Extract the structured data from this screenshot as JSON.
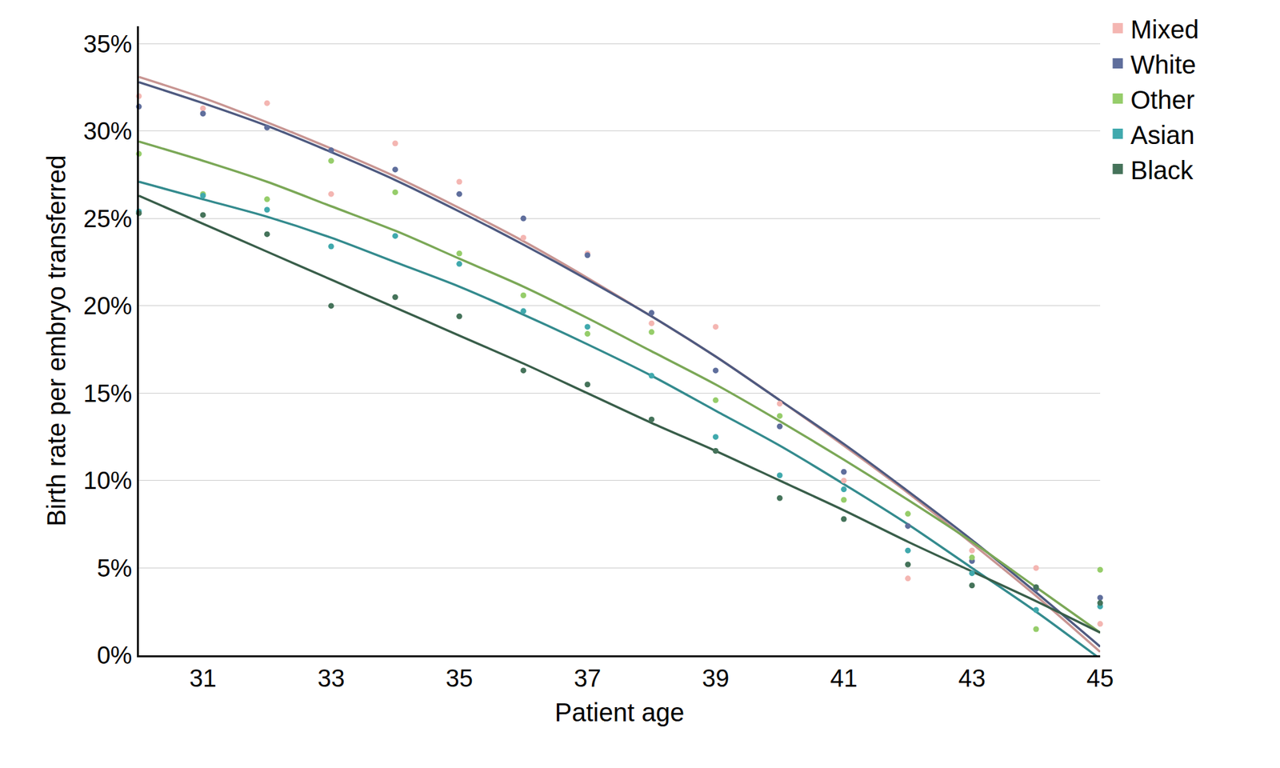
{
  "chart_data": {
    "type": "scatter",
    "x_label": "Patient age",
    "y_label": "Birth rate per embryo transferred",
    "x": [
      30,
      31,
      32,
      33,
      34,
      35,
      36,
      37,
      38,
      39,
      40,
      41,
      42,
      43,
      44,
      45
    ],
    "xlim": [
      30,
      45
    ],
    "xticks": [
      31,
      33,
      35,
      37,
      39,
      41,
      43,
      45
    ],
    "ylim": [
      0,
      36
    ],
    "yticks": [
      {
        "value": 0,
        "label": "0%"
      },
      {
        "value": 5,
        "label": "5%"
      },
      {
        "value": 10,
        "label": "10%"
      },
      {
        "value": 15,
        "label": "15%"
      },
      {
        "value": 20,
        "label": "20%"
      },
      {
        "value": 25,
        "label": "25%"
      },
      {
        "value": 30,
        "label": "30%"
      },
      {
        "value": 35,
        "label": "35%"
      }
    ],
    "grid": true,
    "legend": "right",
    "marker": "circle",
    "series": [
      {
        "name": "Mixed",
        "color": "#f4b6b2",
        "values": [
          32.0,
          31.3,
          31.6,
          26.4,
          29.3,
          27.1,
          23.9,
          23.0,
          19.0,
          18.8,
          14.4,
          10.0,
          4.4,
          6.0,
          5.0,
          1.8
        ],
        "trend": [
          33.1,
          31.9,
          30.5,
          29.0,
          27.4,
          25.6,
          23.7,
          21.6,
          19.4,
          17.1,
          14.6,
          12.0,
          9.3,
          6.4,
          3.4,
          0.2
        ]
      },
      {
        "name": "White",
        "color": "#5f6e9c",
        "values": [
          31.4,
          31.0,
          30.2,
          28.9,
          27.8,
          26.4,
          25.0,
          22.9,
          19.6,
          16.3,
          13.1,
          10.5,
          7.4,
          5.4,
          3.8,
          3.3
        ],
        "trend": [
          32.8,
          31.6,
          30.3,
          28.8,
          27.2,
          25.4,
          23.5,
          21.5,
          19.4,
          17.1,
          14.6,
          12.1,
          9.4,
          6.6,
          3.6,
          0.5
        ]
      },
      {
        "name": "Other",
        "color": "#96cd6a",
        "values": [
          28.7,
          26.4,
          26.1,
          28.3,
          26.5,
          23.0,
          20.6,
          18.4,
          18.5,
          14.6,
          13.7,
          8.9,
          8.1,
          5.6,
          1.5,
          4.9
        ],
        "trend": [
          29.4,
          28.3,
          27.1,
          25.7,
          24.3,
          22.7,
          21.1,
          19.3,
          17.4,
          15.5,
          13.4,
          11.2,
          8.9,
          6.5,
          3.9,
          1.3
        ]
      },
      {
        "name": "Asian",
        "color": "#40a9ad",
        "values": [
          25.4,
          26.3,
          25.5,
          23.4,
          24.0,
          22.4,
          19.7,
          18.8,
          16.0,
          12.5,
          10.3,
          9.5,
          6.0,
          4.7,
          2.6,
          2.8
        ],
        "trend": [
          27.1,
          26.1,
          25.1,
          23.9,
          22.5,
          21.1,
          19.5,
          17.8,
          16.0,
          14.0,
          12.0,
          9.8,
          7.5,
          5.0,
          2.5,
          -0.2
        ]
      },
      {
        "name": "Black",
        "color": "#45735a",
        "values": [
          25.3,
          25.2,
          24.1,
          20.0,
          20.5,
          19.4,
          16.3,
          15.5,
          13.5,
          11.7,
          9.0,
          7.8,
          5.2,
          4.0,
          3.9,
          3.0
        ],
        "trend": [
          26.3,
          24.7,
          23.1,
          21.5,
          19.9,
          18.3,
          16.7,
          15.0,
          13.3,
          11.7,
          10.0,
          8.3,
          6.5,
          4.8,
          3.1,
          1.3
        ]
      }
    ]
  }
}
